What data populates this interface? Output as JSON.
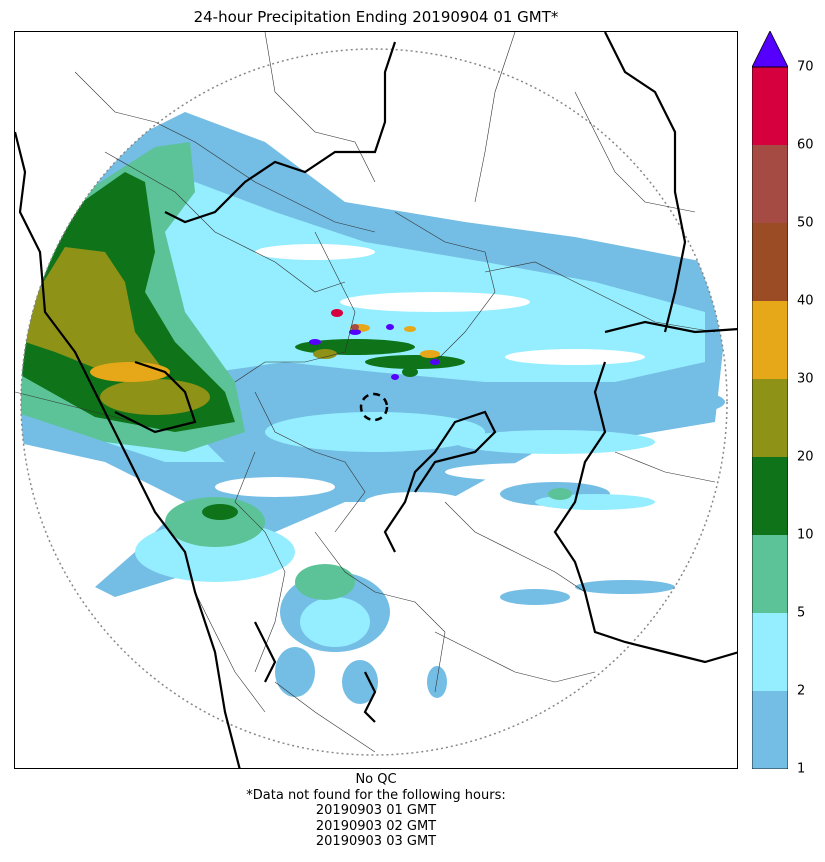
{
  "title": "24-hour Precipitation Ending 20190904 01 GMT*",
  "colorbar": {
    "ticks": [
      "1",
      "2",
      "5",
      "10",
      "20",
      "30",
      "40",
      "50",
      "60",
      "70"
    ],
    "colors": [
      "#74bde4",
      "#95eeff",
      "#5bc397",
      "#0e7319",
      "#8e9217",
      "#e6a819",
      "#9b4c25",
      "#a54b44",
      "#d6003f"
    ],
    "overflow_color": "#5500ff"
  },
  "footer": {
    "line1": "No QC",
    "line2": "*Data not found for the following hours:",
    "line3": "20190903 01 GMT",
    "line4": "20190903 02 GMT",
    "line5": "20190903 03 GMT"
  }
}
